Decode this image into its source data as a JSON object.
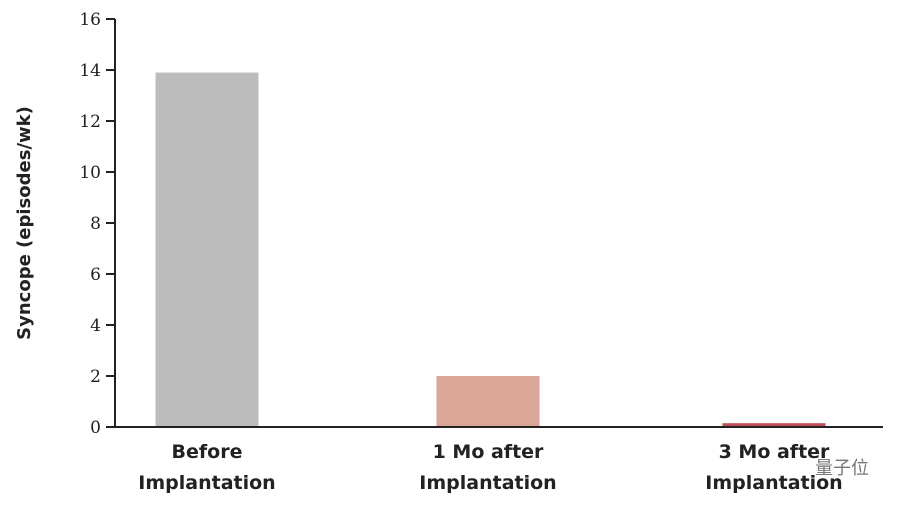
{
  "chart_data": {
    "type": "bar",
    "title": "",
    "xlabel": "",
    "ylabel": "Syncope (episodes/wk)",
    "categories": [
      [
        "Before",
        "Implantation"
      ],
      [
        "1 Mo after",
        "Implantation"
      ],
      [
        "3 Mo after",
        "Implantation"
      ]
    ],
    "values": [
      13.9,
      2.0,
      0.15
    ],
    "colors": [
      "#bcbcbc",
      "#dba597",
      "#c0505e"
    ],
    "ylim": [
      0,
      16
    ],
    "yticks": [
      0,
      2,
      4,
      6,
      8,
      10,
      12,
      14,
      16
    ],
    "grid": false
  },
  "watermark": "量子位"
}
